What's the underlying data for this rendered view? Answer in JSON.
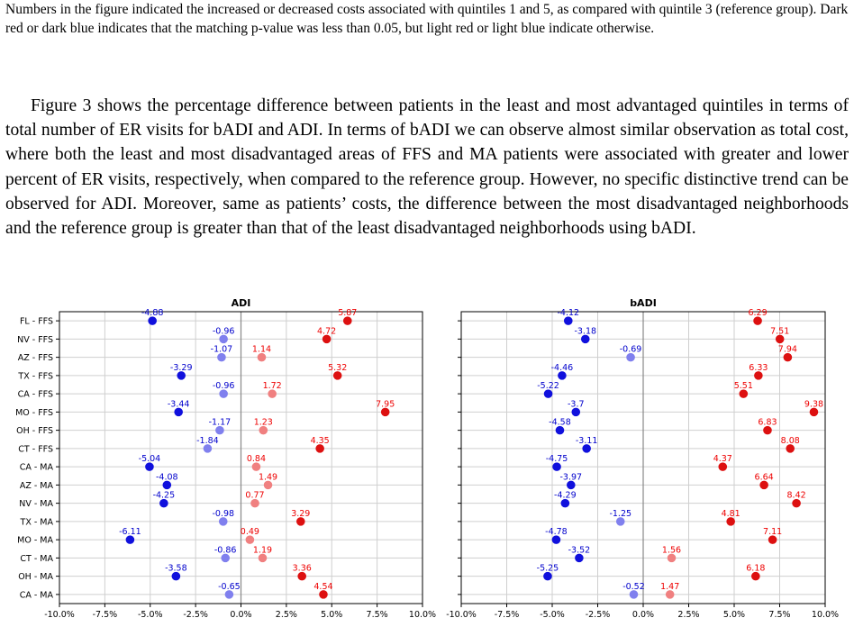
{
  "caption": "Numbers in the figure indicated the increased or decreased costs associated with quintiles 1 and 5, as compared with quintile 3 (reference group). Dark red or dark blue indicates that the matching p-value was less than 0.05, but light red or light blue indicate otherwise.",
  "paragraph": "Figure 3 shows the percentage difference between patients in the least and most advantaged quintiles in terms of total number of ER visits for bADI and ADI. In terms of bADI we can observe almost similar observation as total cost, where both the least and most disadvantaged areas of FFS and MA patients were associated with greater and lower percent of ER visits, respectively, when compared to the reference group. However, no specific distinctive trend can be observed for ADI. Moreover, same as patients’ costs, the difference between the most disadvantaged neighborhoods and the reference group is greater than that of the least disadvantaged neighborhoods using bADI.",
  "colors": {
    "dark_blue": "#1010dd",
    "light_blue": "#8080ee",
    "dark_red": "#dd1010",
    "light_red": "#f08080",
    "label_blue": "#0000cc",
    "label_red": "#ee0000"
  },
  "chart_data": [
    {
      "type": "scatter",
      "title": "ADI",
      "xlim": [
        -10,
        10
      ],
      "x_ticks": [
        "-10.0%",
        "-7.5%",
        "-5.0%",
        "-2.5%",
        "0.0%",
        "2.5%",
        "5.0%",
        "7.5%",
        "10.0%"
      ],
      "grid": true,
      "categories": [
        "FL - FFS",
        "NV - FFS",
        "AZ - FFS",
        "TX - FFS",
        "CA - FFS",
        "MO - FFS",
        "OH - FFS",
        "CT - FFS",
        "CA - MA",
        "AZ - MA",
        "NV - MA",
        "TX - MA",
        "MO - MA",
        "CT - MA",
        "OH - MA",
        "CA - MA"
      ],
      "series": [
        {
          "values": [
            -4.88,
            -0.96,
            -1.07,
            -3.29,
            -0.96,
            -3.44,
            -1.17,
            -1.84,
            -5.04,
            -4.08,
            -4.25,
            -0.98,
            -6.11,
            -0.86,
            -3.58,
            -0.65
          ],
          "labels": [
            "-4.88",
            "-0.96",
            "-1.07",
            "-3.29",
            "-0.96",
            "-3.44",
            "-1.17",
            "-1.84",
            "-5.04",
            "-4.08",
            "-4.25",
            "-0.98",
            "-6.11",
            "-0.86",
            "-3.58",
            "-0.65"
          ],
          "significant": [
            true,
            false,
            false,
            true,
            false,
            true,
            false,
            false,
            true,
            true,
            true,
            false,
            true,
            false,
            true,
            false
          ]
        },
        {
          "values": [
            5.87,
            4.72,
            1.14,
            5.32,
            1.72,
            7.95,
            1.23,
            4.35,
            0.84,
            1.49,
            0.77,
            3.29,
            0.49,
            1.19,
            3.36,
            4.54
          ],
          "labels": [
            "5.87",
            "4.72",
            "1.14",
            "5.32",
            "1.72",
            "7.95",
            "1.23",
            "4.35",
            "0.84",
            "1.49",
            "0.77",
            "3.29",
            "0.49",
            "1.19",
            "3.36",
            "4.54"
          ],
          "significant": [
            true,
            true,
            false,
            true,
            false,
            true,
            false,
            true,
            false,
            false,
            false,
            true,
            false,
            false,
            true,
            true
          ]
        }
      ]
    },
    {
      "type": "scatter",
      "title": "bADI",
      "xlim": [
        -10,
        10
      ],
      "x_ticks": [
        "-10.0%",
        "-7.5%",
        "-5.0%",
        "-2.5%",
        "0.0%",
        "2.5%",
        "5.0%",
        "7.5%",
        "10.0%"
      ],
      "grid": true,
      "categories": [
        "FL - FFS",
        "NV - FFS",
        "AZ - FFS",
        "TX - FFS",
        "CA - FFS",
        "MO - FFS",
        "OH - FFS",
        "CT - FFS",
        "CA - MA",
        "AZ - MA",
        "NV - MA",
        "TX - MA",
        "MO - MA",
        "CT - MA",
        "OH - MA",
        "CA - MA"
      ],
      "series": [
        {
          "values": [
            -4.12,
            -3.18,
            -0.69,
            -4.46,
            -5.22,
            -3.7,
            -4.58,
            -3.11,
            -4.75,
            -3.97,
            -4.29,
            -1.25,
            -4.78,
            -3.52,
            -5.25,
            -0.52
          ],
          "labels": [
            "-4.12",
            "-3.18",
            "-0.69",
            "-4.46",
            "-5.22",
            "-3.7",
            "-4.58",
            "-3.11",
            "-4.75",
            "-3.97",
            "-4.29",
            "-1.25",
            "-4.78",
            "-3.52",
            "-5.25",
            "-0.52"
          ],
          "significant": [
            true,
            true,
            false,
            true,
            true,
            true,
            true,
            true,
            true,
            true,
            true,
            false,
            true,
            true,
            true,
            false
          ]
        },
        {
          "values": [
            6.29,
            7.51,
            7.94,
            6.33,
            5.51,
            9.38,
            6.83,
            8.08,
            4.37,
            6.64,
            8.42,
            4.81,
            7.11,
            1.56,
            6.18,
            1.47
          ],
          "labels": [
            "6.29",
            "7.51",
            "7.94",
            "6.33",
            "5.51",
            "9.38",
            "6.83",
            "8.08",
            "4.37",
            "6.64",
            "8.42",
            "4.81",
            "7.11",
            "1.56",
            "6.18",
            "1.47"
          ],
          "significant": [
            true,
            true,
            true,
            true,
            true,
            true,
            true,
            true,
            true,
            true,
            true,
            true,
            true,
            false,
            true,
            false
          ]
        }
      ]
    }
  ]
}
